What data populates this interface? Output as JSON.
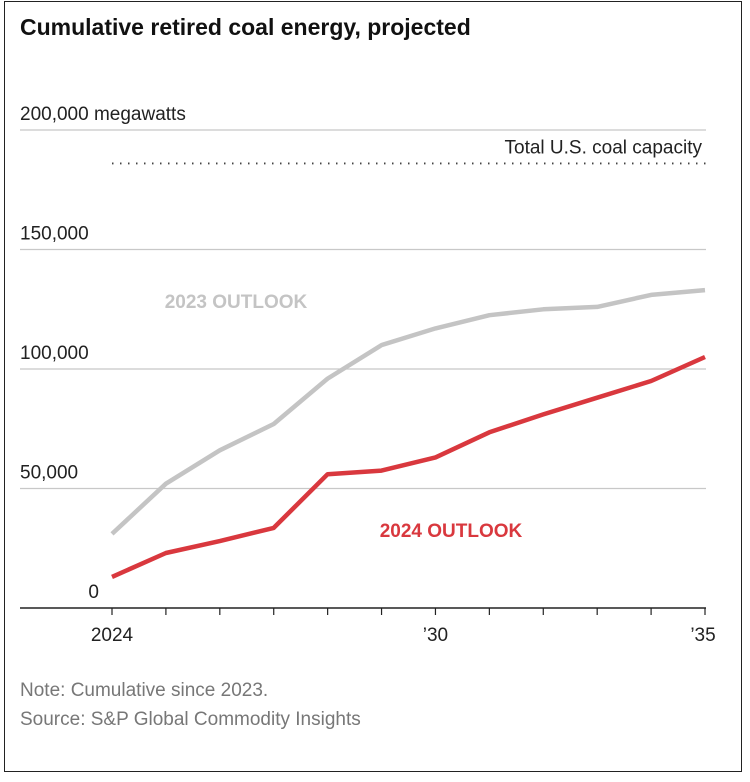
{
  "title": "Cumulative retired coal energy, projected",
  "note": "Note: Cumulative since 2023.",
  "source": "Source: S&P Global Commodity Insights",
  "chart_data": {
    "type": "line",
    "title": "Cumulative retired coal energy, projected",
    "xlabel": "",
    "ylabel": "",
    "x": [
      2024,
      2025,
      2026,
      2027,
      2028,
      2029,
      2030,
      2031,
      2032,
      2033,
      2034,
      2035
    ],
    "xlim": [
      2024,
      2035
    ],
    "ylim": [
      0,
      200000
    ],
    "y_ticks": [
      {
        "value": 0,
        "label": "0"
      },
      {
        "value": 50000,
        "label": "50,000"
      },
      {
        "value": 100000,
        "label": "100,000"
      },
      {
        "value": 150000,
        "label": "150,000"
      },
      {
        "value": 200000,
        "label": "200,000 megawatts"
      }
    ],
    "x_ticks": [
      {
        "value": 2024,
        "label": "2024"
      },
      {
        "value": 2030,
        "label": "’30"
      },
      {
        "value": 2035,
        "label": "’35"
      }
    ],
    "grid": true,
    "series": [
      {
        "name": "2023 OUTLOOK",
        "color": "#c4c4c4",
        "values": [
          31000,
          52000,
          66000,
          77000,
          96000,
          110000,
          117000,
          122500,
          125000,
          126000,
          131000,
          133000
        ]
      },
      {
        "name": "2024 OUTLOOK",
        "color": "#d9383e",
        "values": [
          13000,
          23000,
          28000,
          33500,
          56000,
          57500,
          63000,
          73500,
          81000,
          88000,
          95000,
          105000
        ]
      }
    ],
    "reference_line": {
      "value": 186000,
      "label": "Total U.S. coal capacity",
      "style": "dotted"
    }
  }
}
